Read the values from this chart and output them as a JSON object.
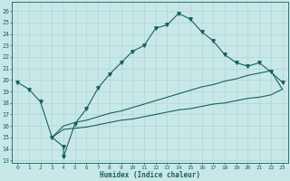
{
  "xlabel": "Humidex (Indice chaleur)",
  "xlim": [
    -0.5,
    23.5
  ],
  "ylim": [
    12.8,
    26.8
  ],
  "xticks": [
    0,
    1,
    2,
    3,
    4,
    5,
    6,
    7,
    8,
    9,
    10,
    11,
    12,
    13,
    14,
    15,
    16,
    17,
    18,
    19,
    20,
    21,
    22,
    23
  ],
  "yticks": [
    13,
    14,
    15,
    16,
    17,
    18,
    19,
    20,
    21,
    22,
    23,
    24,
    25,
    26
  ],
  "bg_color": "#c8e8e8",
  "grid_color": "#a8d0d0",
  "line_color": "#1a6060",
  "curve1_x": [
    0,
    1,
    2,
    3,
    4,
    4,
    5,
    6,
    7,
    8,
    9,
    10,
    11,
    12,
    13,
    14,
    15,
    16,
    17,
    18,
    19,
    20,
    21,
    22,
    23
  ],
  "curve1_y": [
    19.8,
    19.2,
    18.1,
    15.0,
    14.2,
    13.3,
    16.2,
    17.5,
    19.3,
    20.5,
    21.5,
    22.5,
    23.0,
    24.5,
    24.8,
    25.8,
    25.3,
    24.2,
    23.4,
    22.2,
    21.5,
    21.2,
    21.5,
    20.7,
    19.8
  ],
  "curve2_x": [
    3,
    4,
    5,
    6,
    7,
    8,
    9,
    10,
    11,
    12,
    13,
    14,
    15,
    16,
    17,
    18,
    19,
    20,
    21,
    22,
    23
  ],
  "curve2_y": [
    15.0,
    16.0,
    16.3,
    16.5,
    16.8,
    17.1,
    17.3,
    17.6,
    17.9,
    18.2,
    18.5,
    18.8,
    19.1,
    19.4,
    19.6,
    19.9,
    20.1,
    20.4,
    20.6,
    20.8,
    19.2
  ],
  "curve3_x": [
    3,
    4,
    5,
    6,
    7,
    8,
    9,
    10,
    11,
    12,
    13,
    14,
    15,
    16,
    17,
    18,
    19,
    20,
    21,
    22,
    23
  ],
  "curve3_y": [
    15.0,
    15.7,
    15.8,
    15.9,
    16.1,
    16.3,
    16.5,
    16.6,
    16.8,
    17.0,
    17.2,
    17.4,
    17.5,
    17.7,
    17.9,
    18.0,
    18.2,
    18.4,
    18.5,
    18.7,
    19.2
  ],
  "line_width": 0.8,
  "marker_size": 2.5
}
